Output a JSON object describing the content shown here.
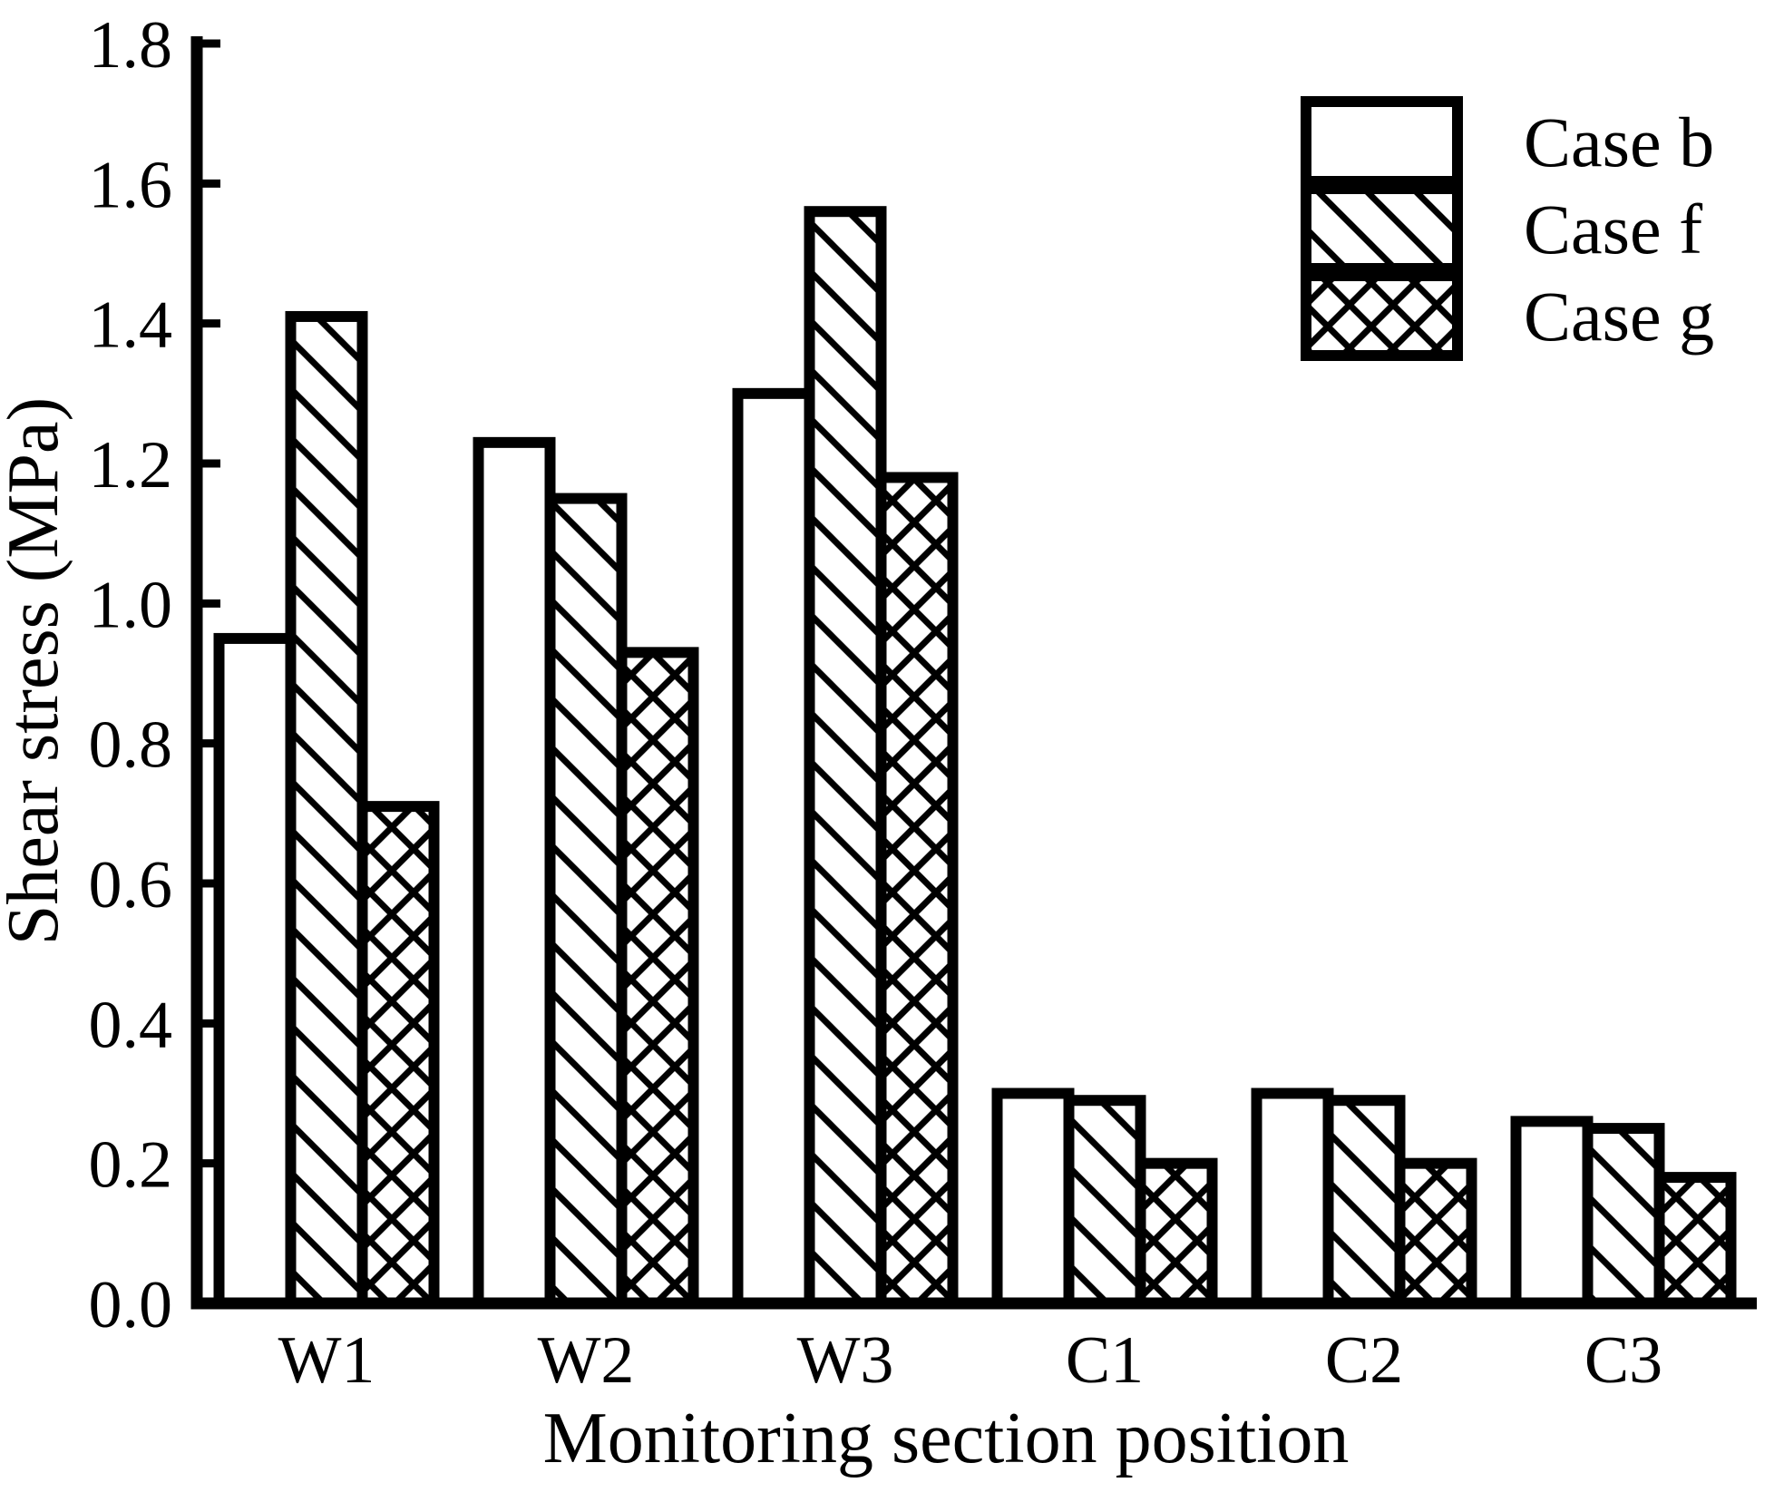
{
  "chart_data": {
    "type": "bar",
    "title": "",
    "xlabel": "Monitoring section position",
    "ylabel": "Shear stress (MPa)",
    "categories": [
      "W1",
      "W2",
      "W3",
      "C1",
      "C2",
      "C3"
    ],
    "series": [
      {
        "name": "Case b",
        "pattern": "solid-white",
        "values": [
          0.95,
          1.23,
          1.3,
          0.3,
          0.3,
          0.26
        ]
      },
      {
        "name": "Case f",
        "pattern": "diagonal-hatch",
        "values": [
          1.41,
          1.15,
          1.56,
          0.29,
          0.29,
          0.25
        ]
      },
      {
        "name": "Case g",
        "pattern": "cross-hatch",
        "values": [
          0.71,
          0.93,
          1.18,
          0.2,
          0.2,
          0.18
        ]
      }
    ],
    "ylim": [
      0,
      1.8
    ],
    "ytick_step": 0.2,
    "ytick_labels": [
      "0.0",
      "0.2",
      "0.4",
      "0.6",
      "0.8",
      "1.0",
      "1.2",
      "1.4",
      "1.6",
      "1.8"
    ],
    "grid": false,
    "legend_position": "upper right",
    "colors": {
      "foreground": "#000000",
      "background": "#ffffff"
    }
  }
}
